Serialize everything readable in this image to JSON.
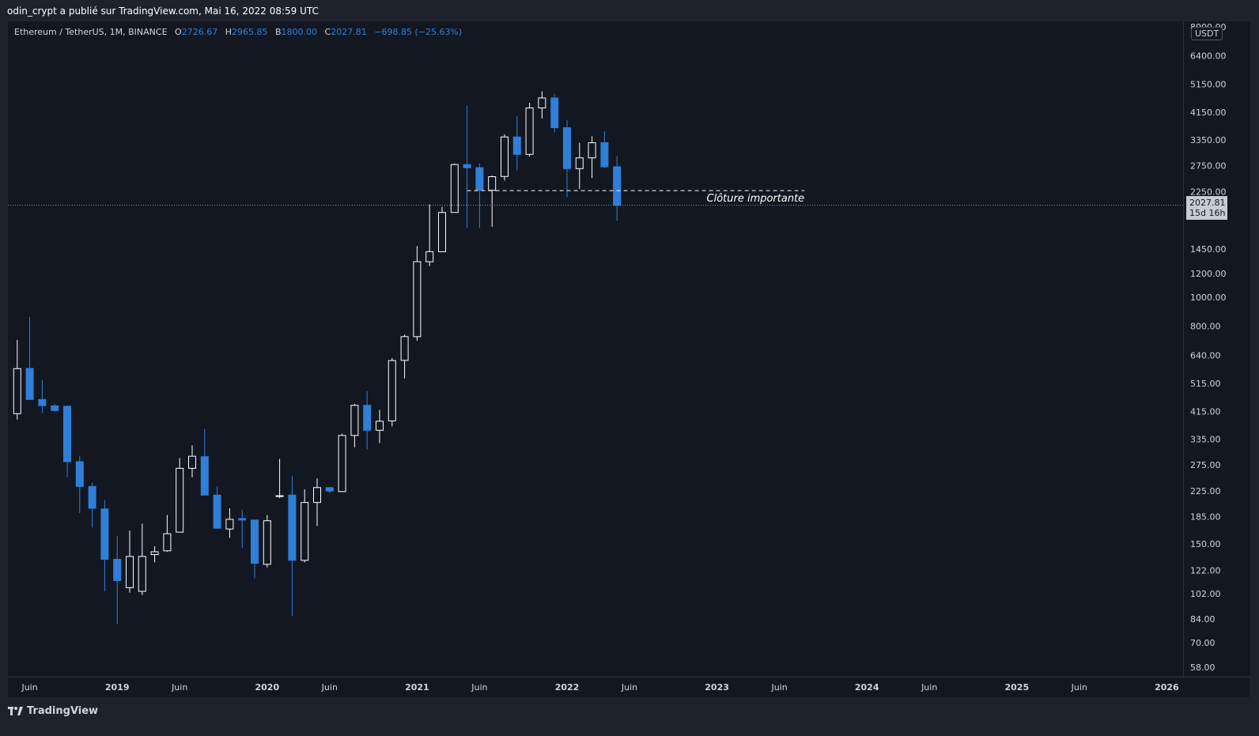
{
  "header": {
    "text": "odin_crypt a publié sur TradingView.com, Mai 16, 2022 08:59 UTC"
  },
  "legend": {
    "symbol": "Ethereum / TetherUS, 1M, BINANCE",
    "open_key": "O",
    "open": "2726.67",
    "high_key": "H",
    "high": "2965.85",
    "low_key": "B",
    "low": "1800.00",
    "close_key": "C",
    "close": "2027.81",
    "change": "−698.85 (−25.63%)"
  },
  "currency": "USDT",
  "last_price": {
    "value": "2027.81",
    "countdown": "15d 16h"
  },
  "annotation": {
    "text": "Clôture importante"
  },
  "footer": {
    "brand": "TradingView"
  },
  "colors": {
    "up": "#131722",
    "up_border": "#ffffff",
    "down": "#2f7fd8",
    "background": "#131722"
  },
  "chart_data": {
    "type": "candlestick",
    "scale": "log",
    "interval": "1M",
    "ylim": [
      55,
      8000
    ],
    "y_ticks": [
      58,
      70,
      84,
      102,
      122,
      150,
      185,
      225,
      275,
      335,
      415,
      515,
      640,
      800,
      1000,
      1200,
      1450,
      2250,
      2750,
      3350,
      4150,
      5150,
      6400,
      8000
    ],
    "y_tick_labels": [
      "58.00",
      "70.00",
      "84.00",
      "102.00",
      "122.00",
      "150.00",
      "185.00",
      "225.00",
      "275.00",
      "335.00",
      "415.00",
      "515.00",
      "640.00",
      "800.00",
      "1000.00",
      "1200.00",
      "1450.00",
      "2250.00",
      "2750.00",
      "3350.00",
      "4150.00",
      "5150.00",
      "6400.00",
      "8000.00"
    ],
    "x_ticks": [
      {
        "label": "Juin",
        "month": 0
      },
      {
        "label": "2019",
        "month": 7
      },
      {
        "label": "Juin",
        "month": 12
      },
      {
        "label": "2020",
        "month": 19
      },
      {
        "label": "Juin",
        "month": 24
      },
      {
        "label": "2021",
        "month": 31
      },
      {
        "label": "Juin",
        "month": 36
      },
      {
        "label": "2022",
        "month": 43
      },
      {
        "label": "Juin",
        "month": 48
      },
      {
        "label": "2023",
        "month": 55
      },
      {
        "label": "Juin",
        "month": 60
      },
      {
        "label": "2024",
        "month": 67
      },
      {
        "label": "Juin",
        "month": 72
      },
      {
        "label": "2025",
        "month": 79
      },
      {
        "label": "Juin",
        "month": 84
      },
      {
        "label": "2026",
        "month": 91
      }
    ],
    "level": {
      "price": 2270,
      "from_month": 35,
      "to_month": 62
    },
    "candles": [
      {
        "m": -1,
        "o": 408,
        "h": 720,
        "l": 390,
        "c": 577
      },
      {
        "m": 0,
        "o": 578,
        "h": 860,
        "l": 465,
        "c": 455
      },
      {
        "m": 1,
        "o": 455,
        "h": 530,
        "l": 410,
        "c": 434
      },
      {
        "m": 2,
        "o": 433,
        "h": 440,
        "l": 415,
        "c": 418
      },
      {
        "m": 3,
        "o": 432,
        "h": 432,
        "l": 250,
        "c": 282
      },
      {
        "m": 4,
        "o": 282,
        "h": 295,
        "l": 190,
        "c": 233
      },
      {
        "m": 5,
        "o": 233,
        "h": 240,
        "l": 170,
        "c": 197
      },
      {
        "m": 6,
        "o": 196,
        "h": 210,
        "l": 104,
        "c": 133
      },
      {
        "m": 7,
        "o": 133,
        "h": 159,
        "l": 81,
        "c": 113
      },
      {
        "m": 8,
        "o": 107,
        "h": 166,
        "l": 103,
        "c": 136
      },
      {
        "m": 9,
        "o": 104,
        "h": 175,
        "l": 101,
        "c": 136
      },
      {
        "m": 10,
        "o": 138,
        "h": 147,
        "l": 130,
        "c": 141
      },
      {
        "m": 11,
        "o": 142,
        "h": 187,
        "l": 141,
        "c": 162
      },
      {
        "m": 12,
        "o": 164,
        "h": 290,
        "l": 164,
        "c": 268
      },
      {
        "m": 13,
        "o": 268,
        "h": 320,
        "l": 250,
        "c": 294
      },
      {
        "m": 14,
        "o": 293,
        "h": 363,
        "l": 251,
        "c": 218
      },
      {
        "m": 15,
        "o": 218,
        "h": 233,
        "l": 170,
        "c": 169
      },
      {
        "m": 16,
        "o": 168,
        "h": 197,
        "l": 157,
        "c": 181
      },
      {
        "m": 17,
        "o": 182,
        "h": 195,
        "l": 145,
        "c": 180
      },
      {
        "m": 18,
        "o": 180,
        "h": 180,
        "l": 115,
        "c": 129
      },
      {
        "m": 19,
        "o": 128,
        "h": 187,
        "l": 125,
        "c": 179
      },
      {
        "m": 20,
        "o": 217,
        "h": 288,
        "l": 213,
        "c": 217
      },
      {
        "m": 21,
        "o": 218,
        "h": 253,
        "l": 86,
        "c": 132
      },
      {
        "m": 22,
        "o": 132,
        "h": 228,
        "l": 130,
        "c": 206
      },
      {
        "m": 23,
        "o": 206,
        "h": 248,
        "l": 172,
        "c": 231
      },
      {
        "m": 24,
        "o": 231,
        "h": 232,
        "l": 221,
        "c": 225
      },
      {
        "m": 25,
        "o": 224,
        "h": 350,
        "l": 225,
        "c": 345
      },
      {
        "m": 26,
        "o": 345,
        "h": 440,
        "l": 315,
        "c": 435
      },
      {
        "m": 27,
        "o": 435,
        "h": 485,
        "l": 310,
        "c": 359
      },
      {
        "m": 28,
        "o": 359,
        "h": 420,
        "l": 325,
        "c": 385
      },
      {
        "m": 29,
        "o": 386,
        "h": 626,
        "l": 370,
        "c": 614
      },
      {
        "m": 30,
        "o": 615,
        "h": 750,
        "l": 535,
        "c": 738
      },
      {
        "m": 31,
        "o": 738,
        "h": 1480,
        "l": 715,
        "c": 1314
      },
      {
        "m": 32,
        "o": 1313,
        "h": 2042,
        "l": 1270,
        "c": 1419
      },
      {
        "m": 33,
        "o": 1418,
        "h": 2000,
        "l": 1420,
        "c": 1918
      },
      {
        "m": 34,
        "o": 1919,
        "h": 2796,
        "l": 1930,
        "c": 2774
      },
      {
        "m": 35,
        "o": 2773,
        "h": 4372,
        "l": 1700,
        "c": 2706
      },
      {
        "m": 36,
        "o": 2707,
        "h": 2800,
        "l": 1700,
        "c": 2275
      },
      {
        "m": 37,
        "o": 2275,
        "h": 2550,
        "l": 1718,
        "c": 2526
      },
      {
        "m": 38,
        "o": 2530,
        "h": 3500,
        "l": 2450,
        "c": 3430
      },
      {
        "m": 39,
        "o": 3430,
        "h": 4027,
        "l": 2650,
        "c": 3000
      },
      {
        "m": 40,
        "o": 3000,
        "h": 4460,
        "l": 2950,
        "c": 4288
      },
      {
        "m": 41,
        "o": 4288,
        "h": 4868,
        "l": 3950,
        "c": 4630
      },
      {
        "m": 42,
        "o": 4630,
        "h": 4778,
        "l": 3550,
        "c": 3682
      },
      {
        "m": 43,
        "o": 3683,
        "h": 3900,
        "l": 2159,
        "c": 2688
      },
      {
        "m": 44,
        "o": 2688,
        "h": 3280,
        "l": 2300,
        "c": 2920
      },
      {
        "m": 45,
        "o": 2920,
        "h": 3450,
        "l": 2500,
        "c": 3281
      },
      {
        "m": 46,
        "o": 3281,
        "h": 3581,
        "l": 2700,
        "c": 2726
      },
      {
        "m": 47,
        "o": 2727,
        "h": 2966,
        "l": 1800,
        "c": 2028
      }
    ]
  }
}
